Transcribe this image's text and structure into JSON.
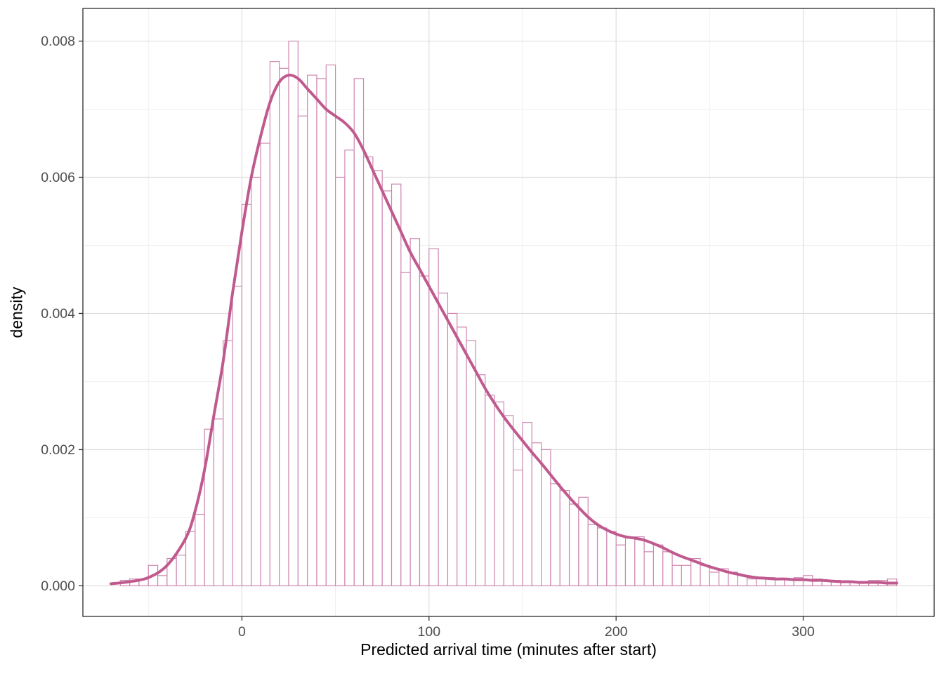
{
  "page": {
    "background": "#FFFFFF"
  },
  "chart_data": {
    "type": "bar",
    "subtype": "histogram_with_density_overlay",
    "title": "",
    "xlabel": "Predicted arrival time (minutes after start)",
    "ylabel": "density",
    "xlim": [
      -85,
      370
    ],
    "ylim": [
      -0.00045,
      0.00848
    ],
    "grid": "on",
    "legend": "none",
    "x_ticks": {
      "values": [
        0,
        100,
        200,
        300
      ],
      "labels": [
        "0",
        "100",
        "200",
        "300"
      ]
    },
    "x_minor_ticks": [
      -50,
      50,
      150,
      250,
      350
    ],
    "y_ticks": {
      "values": [
        0,
        0.002,
        0.004,
        0.006,
        0.008
      ],
      "labels": [
        "0.000",
        "0.002",
        "0.004",
        "0.006",
        "0.008"
      ]
    },
    "y_minor_ticks": [
      0.001,
      0.003,
      0.005,
      0.007
    ],
    "histogram": {
      "bin_start": -65,
      "bin_width": 5,
      "densities": [
        8e-05,
        0.0001,
        0.0001,
        0.0003,
        0.00015,
        0.0004,
        0.00045,
        0.0008,
        0.00105,
        0.0023,
        0.00245,
        0.0036,
        0.0044,
        0.0056,
        0.006,
        0.0065,
        0.0077,
        0.0076,
        0.008,
        0.0069,
        0.0075,
        0.00745,
        0.00765,
        0.006,
        0.0064,
        0.00745,
        0.0063,
        0.0061,
        0.0058,
        0.0059,
        0.0046,
        0.0051,
        0.00455,
        0.00495,
        0.0043,
        0.004,
        0.0038,
        0.0036,
        0.0031,
        0.0028,
        0.0027,
        0.0025,
        0.0017,
        0.0024,
        0.0021,
        0.002,
        0.0015,
        0.0014,
        0.0012,
        0.0013,
        0.0009,
        0.00085,
        0.0008,
        0.0006,
        0.0007,
        0.00072,
        0.0005,
        0.0006,
        0.0005,
        0.0003,
        0.0003,
        0.0004,
        0.0003,
        0.0002,
        0.00025,
        0.0002,
        0.00015,
        0.0001,
        0.0001,
        0.00012,
        0.0001,
        0.0001,
        0.00012,
        0.00015,
        0.0001,
        8e-05,
        8e-05,
        6e-05,
        6e-05,
        6e-05,
        8e-05,
        8e-05,
        0.0001
      ]
    },
    "density_curve": {
      "x": [
        -70,
        -60,
        -50,
        -40,
        -30,
        -25,
        -20,
        -15,
        -10,
        -5,
        0,
        5,
        10,
        15,
        20,
        25,
        30,
        35,
        40,
        45,
        50,
        55,
        60,
        65,
        70,
        75,
        80,
        85,
        90,
        95,
        100,
        105,
        110,
        115,
        120,
        125,
        130,
        135,
        140,
        145,
        150,
        155,
        160,
        165,
        170,
        175,
        180,
        185,
        190,
        195,
        200,
        205,
        210,
        215,
        220,
        225,
        230,
        235,
        240,
        245,
        250,
        255,
        260,
        265,
        270,
        275,
        280,
        285,
        290,
        295,
        300,
        305,
        310,
        315,
        320,
        325,
        330,
        335,
        340,
        345,
        350
      ],
      "y": [
        3e-05,
        6e-05,
        0.00012,
        0.0003,
        0.0007,
        0.0011,
        0.0017,
        0.0025,
        0.0033,
        0.0043,
        0.0052,
        0.006,
        0.0066,
        0.0071,
        0.0074,
        0.0075,
        0.00745,
        0.0073,
        0.00715,
        0.007,
        0.0069,
        0.0068,
        0.00665,
        0.0064,
        0.0061,
        0.0058,
        0.0055,
        0.0052,
        0.0049,
        0.00465,
        0.0044,
        0.00415,
        0.0039,
        0.00365,
        0.0034,
        0.00315,
        0.0029,
        0.00268,
        0.00248,
        0.0023,
        0.00213,
        0.00196,
        0.0018,
        0.00163,
        0.00146,
        0.0013,
        0.00115,
        0.00101,
        0.0009,
        0.00082,
        0.00076,
        0.00072,
        0.0007,
        0.00067,
        0.00062,
        0.00056,
        0.00049,
        0.00043,
        0.00038,
        0.00033,
        0.00028,
        0.00024,
        0.0002,
        0.00017,
        0.00014,
        0.00012,
        0.00011,
        0.0001,
        0.0001,
        9e-05,
        9e-05,
        8e-05,
        8e-05,
        7e-05,
        6e-05,
        6e-05,
        5e-05,
        5e-05,
        5e-05,
        4e-05,
        4e-05
      ]
    },
    "colors": {
      "bar_stroke": "#CE87B0",
      "bar_fill": "#FFFFFF",
      "curve": "#C05A8E",
      "grid_major": "#DEDEDE",
      "grid_minor": "#EFEFEF",
      "panel_border": "#2B2B2B",
      "panel_background": "#FFFFFF",
      "tick": "#333333",
      "tick_label": "#4D4D4D",
      "axis_title": "#000000"
    }
  }
}
